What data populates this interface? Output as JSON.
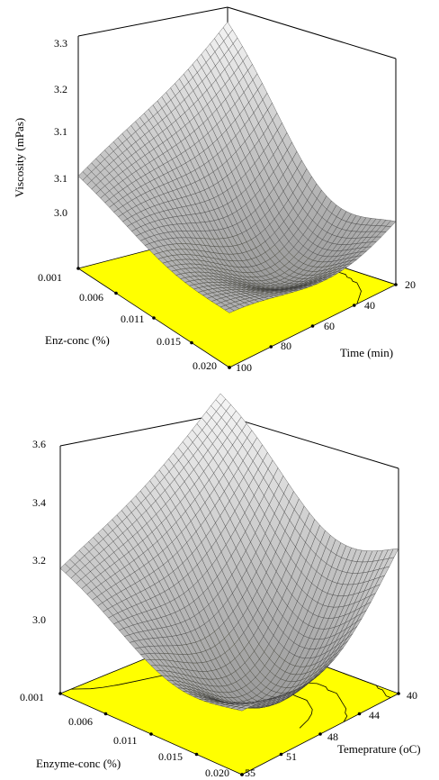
{
  "chart_data": [
    {
      "type": "surface",
      "title": "",
      "zlabel": "Viscosity (mPas)",
      "xlabel": "Enz-conc (%)",
      "ylabel": "Time (min)",
      "x_ticks": [
        "0.001",
        "0.006",
        "0.011",
        "0.015",
        "0.020"
      ],
      "y_ticks": [
        "20",
        "40",
        "60",
        "80",
        "100"
      ],
      "z_ticks": [
        "3.0",
        "3.1",
        "3.1",
        "3.2",
        "3.3"
      ],
      "zlim": [
        2.95,
        3.3
      ],
      "corner_values": {
        "x0_y0": 3.3,
        "x0_y1": 3.1,
        "x1_y0": 3.1,
        "x1_y1": 3.05
      },
      "minimum": {
        "x": 0.014,
        "y": 50,
        "z": 2.97
      },
      "surface_color": "#e8e8e8",
      "floor_color": "#ffff00"
    },
    {
      "type": "surface",
      "title": "",
      "zlabel": "",
      "xlabel": "Enzyme-conc (%)",
      "ylabel": "Temeprature (oC)",
      "x_ticks": [
        "0.001",
        "0.006",
        "0.011",
        "0.015",
        "0.020"
      ],
      "y_ticks": [
        "40",
        "44",
        "48",
        "51",
        "55"
      ],
      "z_ticks": [
        "3.0",
        "3.2",
        "3.4",
        "3.6"
      ],
      "zlim": [
        2.95,
        3.6
      ],
      "corner_values": {
        "x0_y0": 3.6,
        "x0_y1": 3.3,
        "x1_y0": 3.45,
        "x1_y1": 3.18
      },
      "minimum": {
        "x": 0.014,
        "y": 48,
        "z": 2.98
      },
      "surface_color": "#e8e8e8",
      "floor_color": "#ffff00"
    }
  ]
}
